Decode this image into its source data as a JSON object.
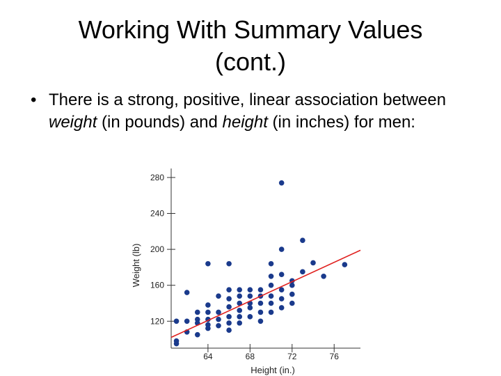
{
  "slide": {
    "title_line1": "Working With Summary Values",
    "title_line2": "(cont.)",
    "bullet_symbol": "•",
    "bullet_text_1": "There is a strong, positive, linear association between ",
    "bullet_em_1": "weight",
    "bullet_text_2": " (in pounds) and ",
    "bullet_em_2": "height",
    "bullet_text_3": " (in inches) for men:"
  },
  "chart_data": {
    "type": "scatter",
    "xlabel": "Height (in.)",
    "ylabel": "Weight (lb)",
    "xlim": [
      60.5,
      78.5
    ],
    "ylim": [
      90,
      290
    ],
    "x_ticks": [
      64,
      68,
      72,
      76
    ],
    "y_ticks": [
      120,
      160,
      200,
      240,
      280
    ],
    "point_color": "#1a3a8c",
    "line_color": "#e0201e",
    "points": [
      {
        "x": 61,
        "y": 95
      },
      {
        "x": 61,
        "y": 98
      },
      {
        "x": 61,
        "y": 120
      },
      {
        "x": 62,
        "y": 108
      },
      {
        "x": 62,
        "y": 120
      },
      {
        "x": 62,
        "y": 152
      },
      {
        "x": 63,
        "y": 105
      },
      {
        "x": 63,
        "y": 118
      },
      {
        "x": 63,
        "y": 122
      },
      {
        "x": 63,
        "y": 130
      },
      {
        "x": 64,
        "y": 112
      },
      {
        "x": 64,
        "y": 116
      },
      {
        "x": 64,
        "y": 122
      },
      {
        "x": 64,
        "y": 130
      },
      {
        "x": 64,
        "y": 138
      },
      {
        "x": 64,
        "y": 184
      },
      {
        "x": 65,
        "y": 115
      },
      {
        "x": 65,
        "y": 122
      },
      {
        "x": 65,
        "y": 130
      },
      {
        "x": 65,
        "y": 148
      },
      {
        "x": 66,
        "y": 110
      },
      {
        "x": 66,
        "y": 118
      },
      {
        "x": 66,
        "y": 125
      },
      {
        "x": 66,
        "y": 136
      },
      {
        "x": 66,
        "y": 145
      },
      {
        "x": 66,
        "y": 155
      },
      {
        "x": 66,
        "y": 184
      },
      {
        "x": 67,
        "y": 118
      },
      {
        "x": 67,
        "y": 125
      },
      {
        "x": 67,
        "y": 132
      },
      {
        "x": 67,
        "y": 140
      },
      {
        "x": 67,
        "y": 148
      },
      {
        "x": 67,
        "y": 155
      },
      {
        "x": 68,
        "y": 125
      },
      {
        "x": 68,
        "y": 135
      },
      {
        "x": 68,
        "y": 140
      },
      {
        "x": 68,
        "y": 148
      },
      {
        "x": 68,
        "y": 155
      },
      {
        "x": 69,
        "y": 120
      },
      {
        "x": 69,
        "y": 130
      },
      {
        "x": 69,
        "y": 140
      },
      {
        "x": 69,
        "y": 148
      },
      {
        "x": 69,
        "y": 155
      },
      {
        "x": 70,
        "y": 130
      },
      {
        "x": 70,
        "y": 140
      },
      {
        "x": 70,
        "y": 148
      },
      {
        "x": 70,
        "y": 160
      },
      {
        "x": 70,
        "y": 170
      },
      {
        "x": 70,
        "y": 184
      },
      {
        "x": 71,
        "y": 135
      },
      {
        "x": 71,
        "y": 145
      },
      {
        "x": 71,
        "y": 155
      },
      {
        "x": 71,
        "y": 172
      },
      {
        "x": 71,
        "y": 200
      },
      {
        "x": 71,
        "y": 274
      },
      {
        "x": 72,
        "y": 140
      },
      {
        "x": 72,
        "y": 150
      },
      {
        "x": 72,
        "y": 160
      },
      {
        "x": 72,
        "y": 165
      },
      {
        "x": 73,
        "y": 175
      },
      {
        "x": 73,
        "y": 210
      },
      {
        "x": 74,
        "y": 185
      },
      {
        "x": 75,
        "y": 170
      },
      {
        "x": 77,
        "y": 183
      }
    ],
    "fit_line": {
      "x": [
        60.5,
        78.5
      ],
      "y": [
        102,
        199
      ]
    }
  }
}
